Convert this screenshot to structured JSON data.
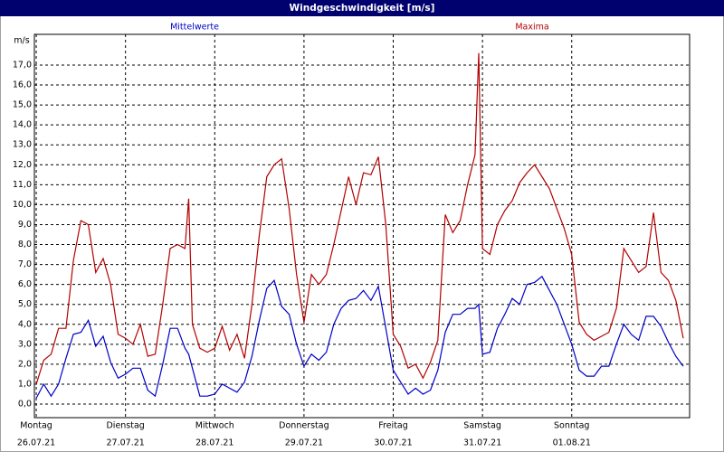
{
  "chart_data": {
    "type": "line",
    "title": "Windgeschwindigkeit [m/s]",
    "y_label": "m/s",
    "x": [
      0,
      2,
      4,
      6,
      8,
      10,
      12,
      14,
      16,
      18,
      20,
      22,
      24,
      26,
      28,
      30,
      32,
      34,
      36,
      38,
      40,
      41,
      42,
      44,
      46,
      48,
      50,
      52,
      54,
      56,
      58,
      60,
      62,
      64,
      66,
      68,
      70,
      72,
      74,
      76,
      78,
      80,
      82,
      84,
      86,
      88,
      90,
      92,
      94,
      96,
      98,
      100,
      102,
      104,
      106,
      108,
      110,
      112,
      114,
      116,
      118,
      119,
      120,
      122,
      124,
      126,
      128,
      130,
      132,
      134,
      136,
      138,
      140,
      142,
      144,
      146,
      148,
      150,
      152,
      154,
      156,
      158,
      160,
      162,
      164,
      166,
      168,
      170,
      172,
      174
    ],
    "xlim": [
      -0.5,
      175.7
    ],
    "xticks": [
      {
        "value": 0,
        "label": "Montag"
      },
      {
        "value": 24,
        "label": "Dienstag"
      },
      {
        "value": 48,
        "label": "Mittwoch"
      },
      {
        "value": 72,
        "label": "Donnerstag"
      },
      {
        "value": 96,
        "label": "Freitag"
      },
      {
        "value": 120,
        "label": "Samstag"
      },
      {
        "value": 144,
        "label": "Sonntag"
      }
    ],
    "xtick_dates": [
      "26.07.21",
      "27.07.21",
      "28.07.21",
      "29.07.21",
      "30.07.21",
      "31.07.21",
      "01.08.21"
    ],
    "ylim": [
      -0.68,
      18.54
    ],
    "yticks": [
      {
        "value": 0,
        "label": "0,0"
      },
      {
        "value": 1,
        "label": "1,0"
      },
      {
        "value": 2,
        "label": "2,0"
      },
      {
        "value": 3,
        "label": "3,0"
      },
      {
        "value": 4,
        "label": "4,0"
      },
      {
        "value": 5,
        "label": "5,0"
      },
      {
        "value": 6,
        "label": "6,0"
      },
      {
        "value": 7,
        "label": "7,0"
      },
      {
        "value": 8,
        "label": "8,0"
      },
      {
        "value": 9,
        "label": "9,0"
      },
      {
        "value": 10,
        "label": "10,0"
      },
      {
        "value": 11,
        "label": "11,0"
      },
      {
        "value": 12,
        "label": "12,0"
      },
      {
        "value": 13,
        "label": "13,0"
      },
      {
        "value": 14,
        "label": "14,0"
      },
      {
        "value": 15,
        "label": "15,0"
      },
      {
        "value": 16,
        "label": "16,0"
      },
      {
        "value": 17,
        "label": "17,0"
      }
    ],
    "grid": true,
    "series": [
      {
        "name": "Mittelwerte",
        "color": "#0000c8",
        "values": [
          0.3,
          1.0,
          0.4,
          1.0,
          2.3,
          3.5,
          3.6,
          4.2,
          2.9,
          3.4,
          2.1,
          1.3,
          1.5,
          1.8,
          1.8,
          0.7,
          0.4,
          2.0,
          3.8,
          3.8,
          2.8,
          2.5,
          1.8,
          0.4,
          0.4,
          0.5,
          1.0,
          0.8,
          0.6,
          1.1,
          2.4,
          4.2,
          5.8,
          6.2,
          4.9,
          4.5,
          3.0,
          1.9,
          2.5,
          2.2,
          2.6,
          4.0,
          4.8,
          5.2,
          5.3,
          5.7,
          5.2,
          5.9,
          3.8,
          1.7,
          1.1,
          0.5,
          0.8,
          0.5,
          0.7,
          1.7,
          3.6,
          4.5,
          4.5,
          4.8,
          4.8,
          5.0,
          2.5,
          2.6,
          3.8,
          4.5,
          5.3,
          5.0,
          6.0,
          6.1,
          6.4,
          5.7,
          5.0,
          4.0,
          3.0,
          1.7,
          1.4,
          1.4,
          1.9,
          1.9,
          3.0,
          4.0,
          3.5,
          3.2,
          4.4,
          4.4,
          3.9,
          3.1,
          2.4,
          1.9
        ]
      },
      {
        "name": "Maxima",
        "color": "#b40000",
        "values": [
          1.0,
          2.2,
          2.5,
          3.8,
          3.8,
          7.2,
          9.2,
          9.0,
          6.6,
          7.3,
          6.0,
          3.5,
          3.3,
          3.0,
          4.0,
          2.4,
          2.5,
          5.0,
          7.8,
          8.0,
          7.8,
          10.3,
          4.0,
          2.8,
          2.6,
          2.8,
          3.9,
          2.7,
          3.5,
          2.3,
          5.0,
          8.5,
          11.4,
          12.0,
          12.3,
          9.8,
          6.5,
          4.1,
          6.5,
          6.0,
          6.5,
          8.0,
          9.7,
          11.4,
          10.0,
          11.6,
          11.5,
          12.4,
          9.0,
          3.5,
          2.9,
          1.8,
          2.0,
          1.3,
          2.1,
          3.2,
          9.5,
          8.6,
          9.2,
          11.0,
          12.5,
          17.6,
          7.8,
          7.5,
          9.0,
          9.7,
          10.2,
          11.1,
          11.6,
          12.0,
          11.4,
          10.8,
          9.8,
          8.8,
          7.5,
          4.1,
          3.5,
          3.2,
          3.4,
          3.6,
          4.8,
          7.8,
          7.2,
          6.6,
          6.9,
          9.6,
          6.6,
          6.2,
          5.2,
          3.3
        ]
      }
    ]
  }
}
